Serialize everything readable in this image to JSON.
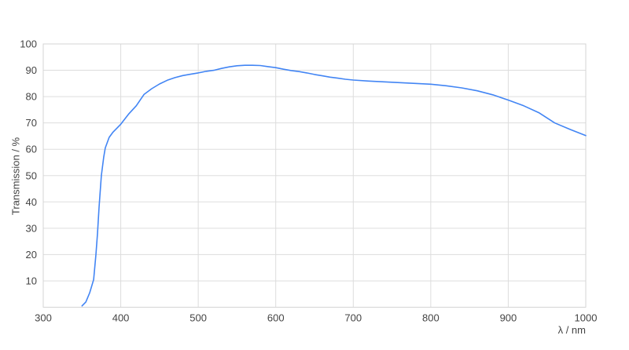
{
  "chart_data": {
    "type": "line",
    "title": "",
    "xlabel": "λ / nm",
    "ylabel": "Transmission / %",
    "xlim": [
      300,
      1000
    ],
    "ylim": [
      0,
      100
    ],
    "x_ticks": [
      300,
      400,
      500,
      600,
      700,
      800,
      900,
      1000
    ],
    "y_ticks": [
      10,
      20,
      30,
      40,
      50,
      60,
      70,
      80,
      90,
      100
    ],
    "grid": true,
    "legend_position": "none",
    "series": [
      {
        "name": "Transmission",
        "color": "#4285f4",
        "x": [
          350,
          355,
          360,
          365,
          368,
          370,
          372,
          375,
          378,
          380,
          385,
          390,
          395,
          400,
          410,
          420,
          430,
          440,
          450,
          460,
          470,
          480,
          490,
          500,
          510,
          520,
          530,
          540,
          550,
          560,
          570,
          580,
          590,
          600,
          610,
          620,
          630,
          640,
          650,
          660,
          670,
          680,
          690,
          700,
          720,
          740,
          760,
          780,
          800,
          820,
          840,
          860,
          880,
          900,
          920,
          940,
          960,
          980,
          1000
        ],
        "y": [
          0.5,
          2,
          5.5,
          10.5,
          20,
          28,
          38,
          50,
          57,
          60.5,
          64.5,
          66.5,
          68,
          69.5,
          73.3,
          76.5,
          80.8,
          83,
          84.8,
          86.2,
          87.2,
          88,
          88.5,
          89,
          89.6,
          90,
          90.7,
          91.3,
          91.7,
          91.9,
          91.9,
          91.8,
          91.4,
          91,
          90.4,
          89.9,
          89.5,
          89,
          88.4,
          87.9,
          87.4,
          87,
          86.6,
          86.3,
          85.9,
          85.6,
          85.3,
          85,
          84.7,
          84.1,
          83.3,
          82.2,
          80.7,
          78.7,
          76.5,
          73.8,
          70,
          67.5,
          65.2
        ]
      }
    ]
  },
  "colors": {
    "background": "#ffffff",
    "grid": "#dddddd",
    "plot_border": "#d4d4d4",
    "tick_label": "#444444",
    "axis_title": "#444444",
    "line": "#4285f4"
  }
}
